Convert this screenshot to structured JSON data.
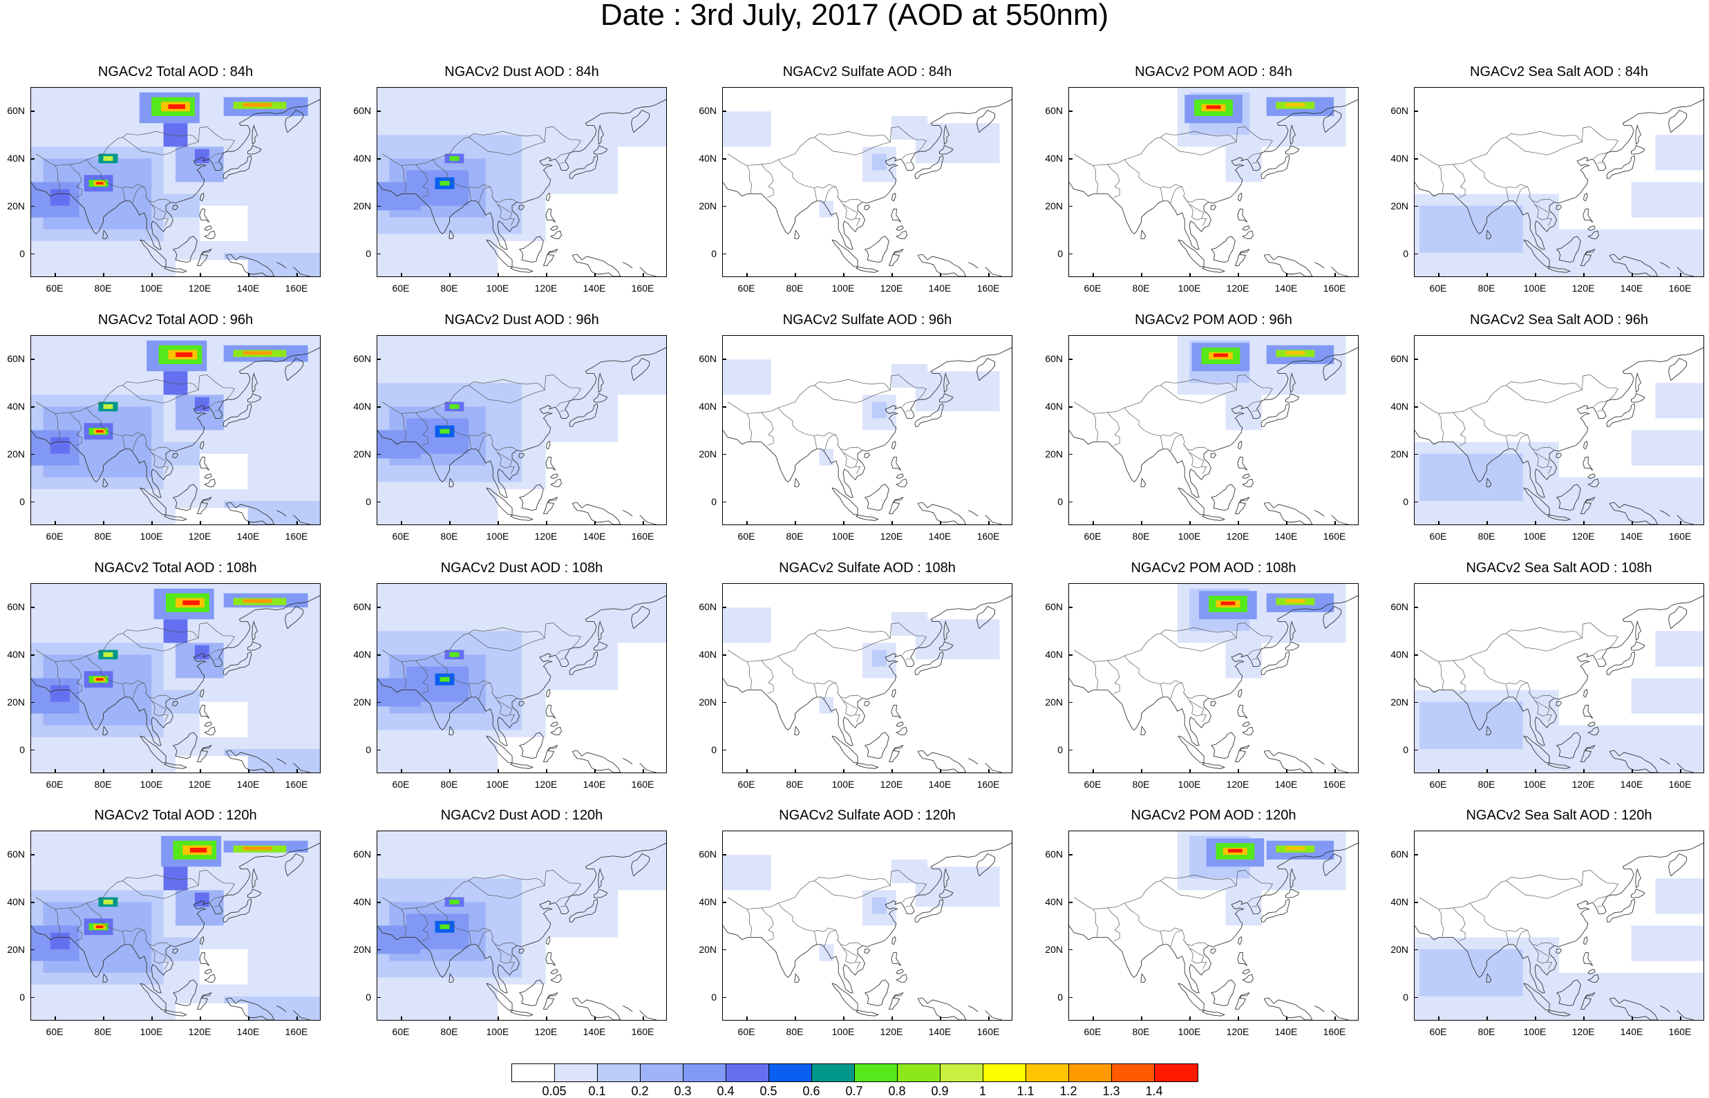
{
  "title": "Date : 3rd July, 2017 (AOD at 550nm)",
  "map": {
    "lon_range": [
      50,
      170
    ],
    "lat_range": [
      -10,
      70
    ],
    "x_ticks": [
      "60E",
      "80E",
      "100E",
      "120E",
      "140E",
      "160E"
    ],
    "y_ticks": [
      "60N",
      "40N",
      "20N",
      "0"
    ]
  },
  "panels": [
    [
      "NGACv2 Total AOD : 84h",
      "NGACv2 Dust AOD : 84h",
      "NGACv2 Sulfate AOD : 84h",
      "NGACv2 POM AOD : 84h",
      "NGACv2 Sea Salt AOD : 84h"
    ],
    [
      "NGACv2 Total AOD : 96h",
      "NGACv2 Dust AOD : 96h",
      "NGACv2 Sulfate AOD : 96h",
      "NGACv2 POM AOD : 96h",
      "NGACv2 Sea Salt AOD : 96h"
    ],
    [
      "NGACv2 Total AOD : 108h",
      "NGACv2 Dust AOD : 108h",
      "NGACv2 Sulfate AOD : 108h",
      "NGACv2 POM AOD : 108h",
      "NGACv2 Sea Salt AOD : 108h"
    ],
    [
      "NGACv2 Total AOD : 120h",
      "NGACv2 Dust AOD : 120h",
      "NGACv2 Sulfate AOD : 120h",
      "NGACv2 POM AOD : 120h",
      "NGACv2 Sea Salt  AOD : 120h"
    ]
  ],
  "colorbar": {
    "labels": [
      "0.05",
      "0.1",
      "0.2",
      "0.3",
      "0.4",
      "0.5",
      "0.6",
      "0.7",
      "0.8",
      "0.9",
      "1",
      "1.1",
      "1.2",
      "1.3",
      "1.4"
    ],
    "colors": [
      "#ffffff",
      "#dce4fb",
      "#bccdfb",
      "#9fb4f8",
      "#8199f5",
      "#6470f0",
      "#0a5ff0",
      "#00968a",
      "#55e81a",
      "#8de81a",
      "#c8f040",
      "#ffff00",
      "#ffc400",
      "#ff9a00",
      "#ff5a00",
      "#ff1a00"
    ]
  }
}
